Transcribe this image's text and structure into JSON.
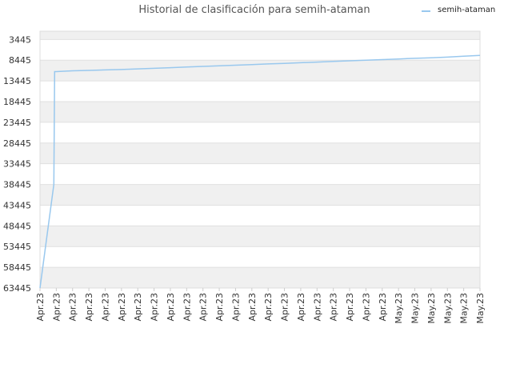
{
  "chart_data": {
    "type": "line",
    "title": "Historial de clasificación para semih-ataman",
    "xlabel": "",
    "ylabel": "",
    "y_inverted": true,
    "ylim": [
      63445,
      0
    ],
    "y_ticks": [
      3445,
      8445,
      13445,
      18445,
      23445,
      28445,
      33445,
      38445,
      43445,
      48445,
      53445,
      58445,
      63445
    ],
    "x_ticks": [
      "Apr.23",
      "Apr.23",
      "Apr.23",
      "Apr.23",
      "Apr.23",
      "Apr.23",
      "Apr.23",
      "Apr.23",
      "Apr.23",
      "Apr.23",
      "Apr.23",
      "Apr.23",
      "Apr.23",
      "Apr.23",
      "Apr.23",
      "Apr.23",
      "Apr.23",
      "Apr.23",
      "Apr.23",
      "Apr.23",
      "Apr.23",
      "Apr.23",
      "May.23",
      "May.23",
      "May.23",
      "May.23",
      "May.23",
      "May.23"
    ],
    "grid": true,
    "legend_position": "top-right",
    "series": [
      {
        "name": "semih-ataman",
        "color": "#99c8ee",
        "x": [
          0,
          0.85,
          0.9,
          1.0,
          1.5,
          2.0,
          3.0,
          4.0,
          5.0,
          6.0,
          7.0,
          8.0,
          9.0,
          10.0,
          11.0,
          12.0,
          13.0,
          14.0,
          15.0,
          16.0,
          17.0,
          18.0,
          19.0,
          20.0,
          21.0,
          22.0,
          23.0,
          24.0,
          25.0,
          26.0,
          27.0
        ],
        "y": [
          63445,
          38445,
          11200,
          11200,
          11100,
          11000,
          10900,
          10800,
          10700,
          10550,
          10400,
          10250,
          10100,
          9950,
          9800,
          9650,
          9500,
          9350,
          9200,
          9050,
          8900,
          8750,
          8600,
          8450,
          8300,
          8150,
          8000,
          7850,
          7700,
          7500,
          7300
        ]
      }
    ]
  }
}
